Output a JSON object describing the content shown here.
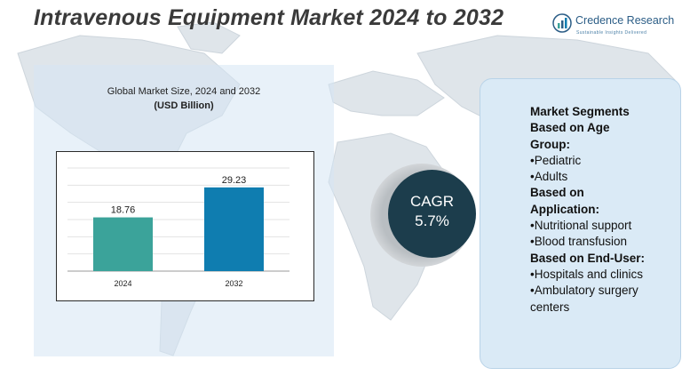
{
  "title": "Intravenous Equipment Market 2024 to 2032",
  "brand": {
    "name": "Credence Research",
    "tagline": "Sustainable Insights Delivered"
  },
  "chart_data": {
    "type": "bar",
    "title": "Global Market Size, 2024 and 2032",
    "subtitle": "(USD Billion)",
    "categories": [
      "2024",
      "2032"
    ],
    "values": [
      18.76,
      29.23
    ],
    "value_labels": [
      "18.76",
      "29.23"
    ],
    "colors": [
      "#3ba39a",
      "#0f7db0"
    ],
    "ylim": [
      0,
      36
    ],
    "grid": true,
    "xlabel": "",
    "ylabel": ""
  },
  "cagr": {
    "label": "CAGR",
    "value": "5.7%"
  },
  "segments": {
    "heading_lines": [
      "Market Segments",
      "Based on Age",
      "Group:"
    ],
    "age_group": [
      "•Pediatric",
      "•Adults"
    ],
    "application_heading": [
      "Based on",
      "Application:"
    ],
    "application": [
      "•Nutritional support",
      "•Blood transfusion"
    ],
    "end_user_heading": "Based on End-User:",
    "end_user": [
      "•Hospitals and clinics",
      "•Ambulatory surgery",
      "centers"
    ]
  },
  "colors": {
    "accent_dark": "#1c3d4c",
    "brand_blue": "#2b5d86",
    "panel_light": "#daeaf6"
  }
}
